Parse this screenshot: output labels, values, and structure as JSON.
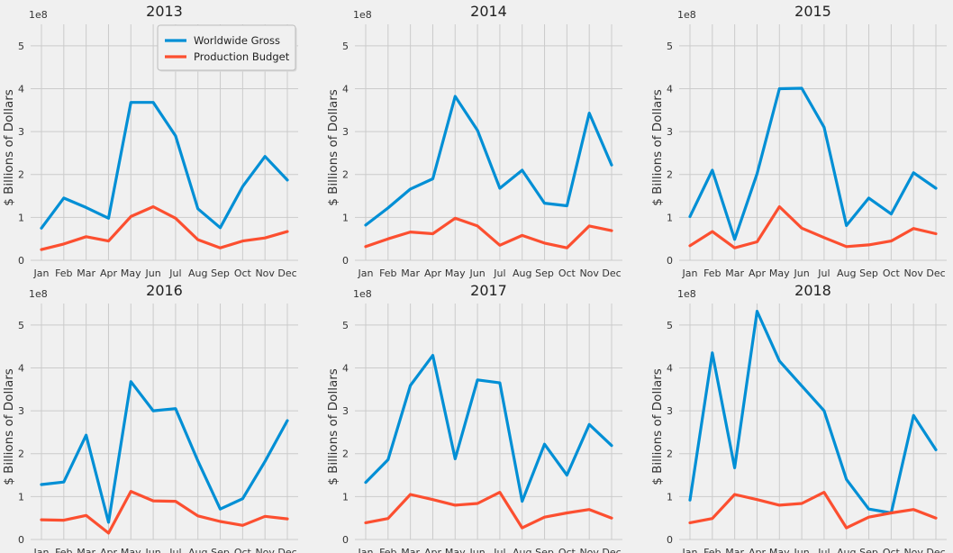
{
  "chart_data": [
    {
      "type": "line",
      "title": "2013",
      "ylabel": "$ Billions of Dollars",
      "offset_text": "1e8",
      "categories": [
        "Jan",
        "Feb",
        "Mar",
        "Apr",
        "May",
        "Jun",
        "Jul",
        "Aug",
        "Sep",
        "Oct",
        "Nov",
        "Dec"
      ],
      "ylim": [
        0,
        5.5
      ],
      "yticks": [
        0,
        1,
        2,
        3,
        4,
        5
      ],
      "grid": true,
      "legend": {
        "position": "upper-center"
      },
      "series": [
        {
          "name": "Worldwide Gross",
          "color": "#008fd5",
          "values": [
            0.75,
            1.45,
            1.23,
            0.98,
            3.68,
            3.68,
            2.9,
            1.2,
            0.76,
            1.72,
            2.42,
            1.87
          ]
        },
        {
          "name": "Production Budget",
          "color": "#fc4f30",
          "values": [
            0.25,
            0.38,
            0.55,
            0.45,
            1.02,
            1.25,
            0.98,
            0.48,
            0.29,
            0.45,
            0.52,
            0.67
          ]
        }
      ]
    },
    {
      "type": "line",
      "title": "2014",
      "ylabel": "$ Billions of Dollars",
      "offset_text": "1e8",
      "categories": [
        "Jan",
        "Feb",
        "Mar",
        "Apr",
        "May",
        "Jun",
        "Jul",
        "Aug",
        "Sep",
        "Oct",
        "Nov",
        "Dec"
      ],
      "ylim": [
        0,
        5.5
      ],
      "yticks": [
        0,
        1,
        2,
        3,
        4,
        5
      ],
      "grid": true,
      "series": [
        {
          "name": "Worldwide Gross",
          "color": "#008fd5",
          "values": [
            0.82,
            1.22,
            1.66,
            1.9,
            3.82,
            3.03,
            1.68,
            2.1,
            1.33,
            1.27,
            3.43,
            2.22
          ]
        },
        {
          "name": "Production Budget",
          "color": "#fc4f30",
          "values": [
            0.32,
            0.5,
            0.66,
            0.62,
            0.98,
            0.8,
            0.35,
            0.58,
            0.4,
            0.29,
            0.8,
            0.69
          ]
        }
      ]
    },
    {
      "type": "line",
      "title": "2015",
      "ylabel": "$ Billions of Dollars",
      "offset_text": "1e8",
      "categories": [
        "Jan",
        "Feb",
        "Mar",
        "Apr",
        "May",
        "Jun",
        "Jul",
        "Aug",
        "Sep",
        "Oct",
        "Nov",
        "Dec"
      ],
      "ylim": [
        0,
        5.5
      ],
      "yticks": [
        0,
        1,
        2,
        3,
        4,
        5
      ],
      "grid": true,
      "series": [
        {
          "name": "Worldwide Gross",
          "color": "#008fd5",
          "values": [
            1.02,
            2.1,
            0.49,
            2.02,
            4.0,
            4.01,
            3.1,
            0.81,
            1.45,
            1.08,
            2.04,
            1.68
          ]
        },
        {
          "name": "Production Budget",
          "color": "#fc4f30",
          "values": [
            0.34,
            0.67,
            0.29,
            0.43,
            1.25,
            0.75,
            0.53,
            0.32,
            0.36,
            0.45,
            0.74,
            0.62
          ]
        }
      ]
    },
    {
      "type": "line",
      "title": "2016",
      "ylabel": "$ Billions of Dollars",
      "offset_text": "1e8",
      "categories": [
        "Jan",
        "Feb",
        "Mar",
        "Apr",
        "May",
        "Jun",
        "Jul",
        "Aug",
        "Sep",
        "Oct",
        "Nov",
        "Dec"
      ],
      "ylim": [
        0,
        5.5
      ],
      "yticks": [
        0,
        1,
        2,
        3,
        4,
        5
      ],
      "grid": true,
      "series": [
        {
          "name": "Worldwide Gross",
          "color": "#008fd5",
          "values": [
            1.28,
            1.34,
            2.43,
            0.4,
            3.68,
            3.0,
            3.05,
            1.83,
            0.71,
            0.95,
            1.82,
            2.77
          ]
        },
        {
          "name": "Production Budget",
          "color": "#fc4f30",
          "values": [
            0.46,
            0.45,
            0.56,
            0.15,
            1.12,
            0.9,
            0.89,
            0.55,
            0.42,
            0.33,
            0.54,
            0.48
          ]
        }
      ]
    },
    {
      "type": "line",
      "title": "2017",
      "ylabel": "$ Billions of Dollars",
      "offset_text": "1e8",
      "categories": [
        "Jan",
        "Feb",
        "Mar",
        "Apr",
        "May",
        "Jun",
        "Jul",
        "Aug",
        "Sep",
        "Oct",
        "Nov",
        "Dec"
      ],
      "ylim": [
        0,
        5.5
      ],
      "yticks": [
        0,
        1,
        2,
        3,
        4,
        5
      ],
      "grid": true,
      "series": [
        {
          "name": "Worldwide Gross",
          "color": "#008fd5",
          "values": [
            1.33,
            1.86,
            3.59,
            4.29,
            1.88,
            3.72,
            3.65,
            0.89,
            2.22,
            1.5,
            2.68,
            2.19
          ]
        },
        {
          "name": "Production Budget",
          "color": "#fc4f30",
          "values": [
            0.39,
            0.49,
            1.05,
            0.93,
            0.8,
            0.84,
            1.1,
            0.27,
            0.52,
            0.62,
            0.7,
            0.5
          ]
        }
      ]
    },
    {
      "type": "line",
      "title": "2018",
      "ylabel": "$ Billions of Dollars",
      "offset_text": "1e8",
      "categories": [
        "Jan",
        "Feb",
        "Mar",
        "Apr",
        "May",
        "Jun",
        "Jul",
        "Aug",
        "Sep",
        "Oct",
        "Nov",
        "Dec"
      ],
      "ylim": [
        0,
        5.5
      ],
      "yticks": [
        0,
        1,
        2,
        3,
        4,
        5
      ],
      "grid": true,
      "series": [
        {
          "name": "Worldwide Gross",
          "color": "#008fd5",
          "values": [
            0.92,
            4.35,
            1.67,
            5.32,
            4.16,
            3.58,
            3.0,
            1.4,
            0.71,
            0.62,
            2.89,
            2.09
          ]
        },
        {
          "name": "Production Budget",
          "color": "#fc4f30",
          "values": [
            0.39,
            0.49,
            1.05,
            0.93,
            0.8,
            0.84,
            1.1,
            0.27,
            0.52,
            0.62,
            0.7,
            0.5
          ]
        }
      ]
    }
  ]
}
